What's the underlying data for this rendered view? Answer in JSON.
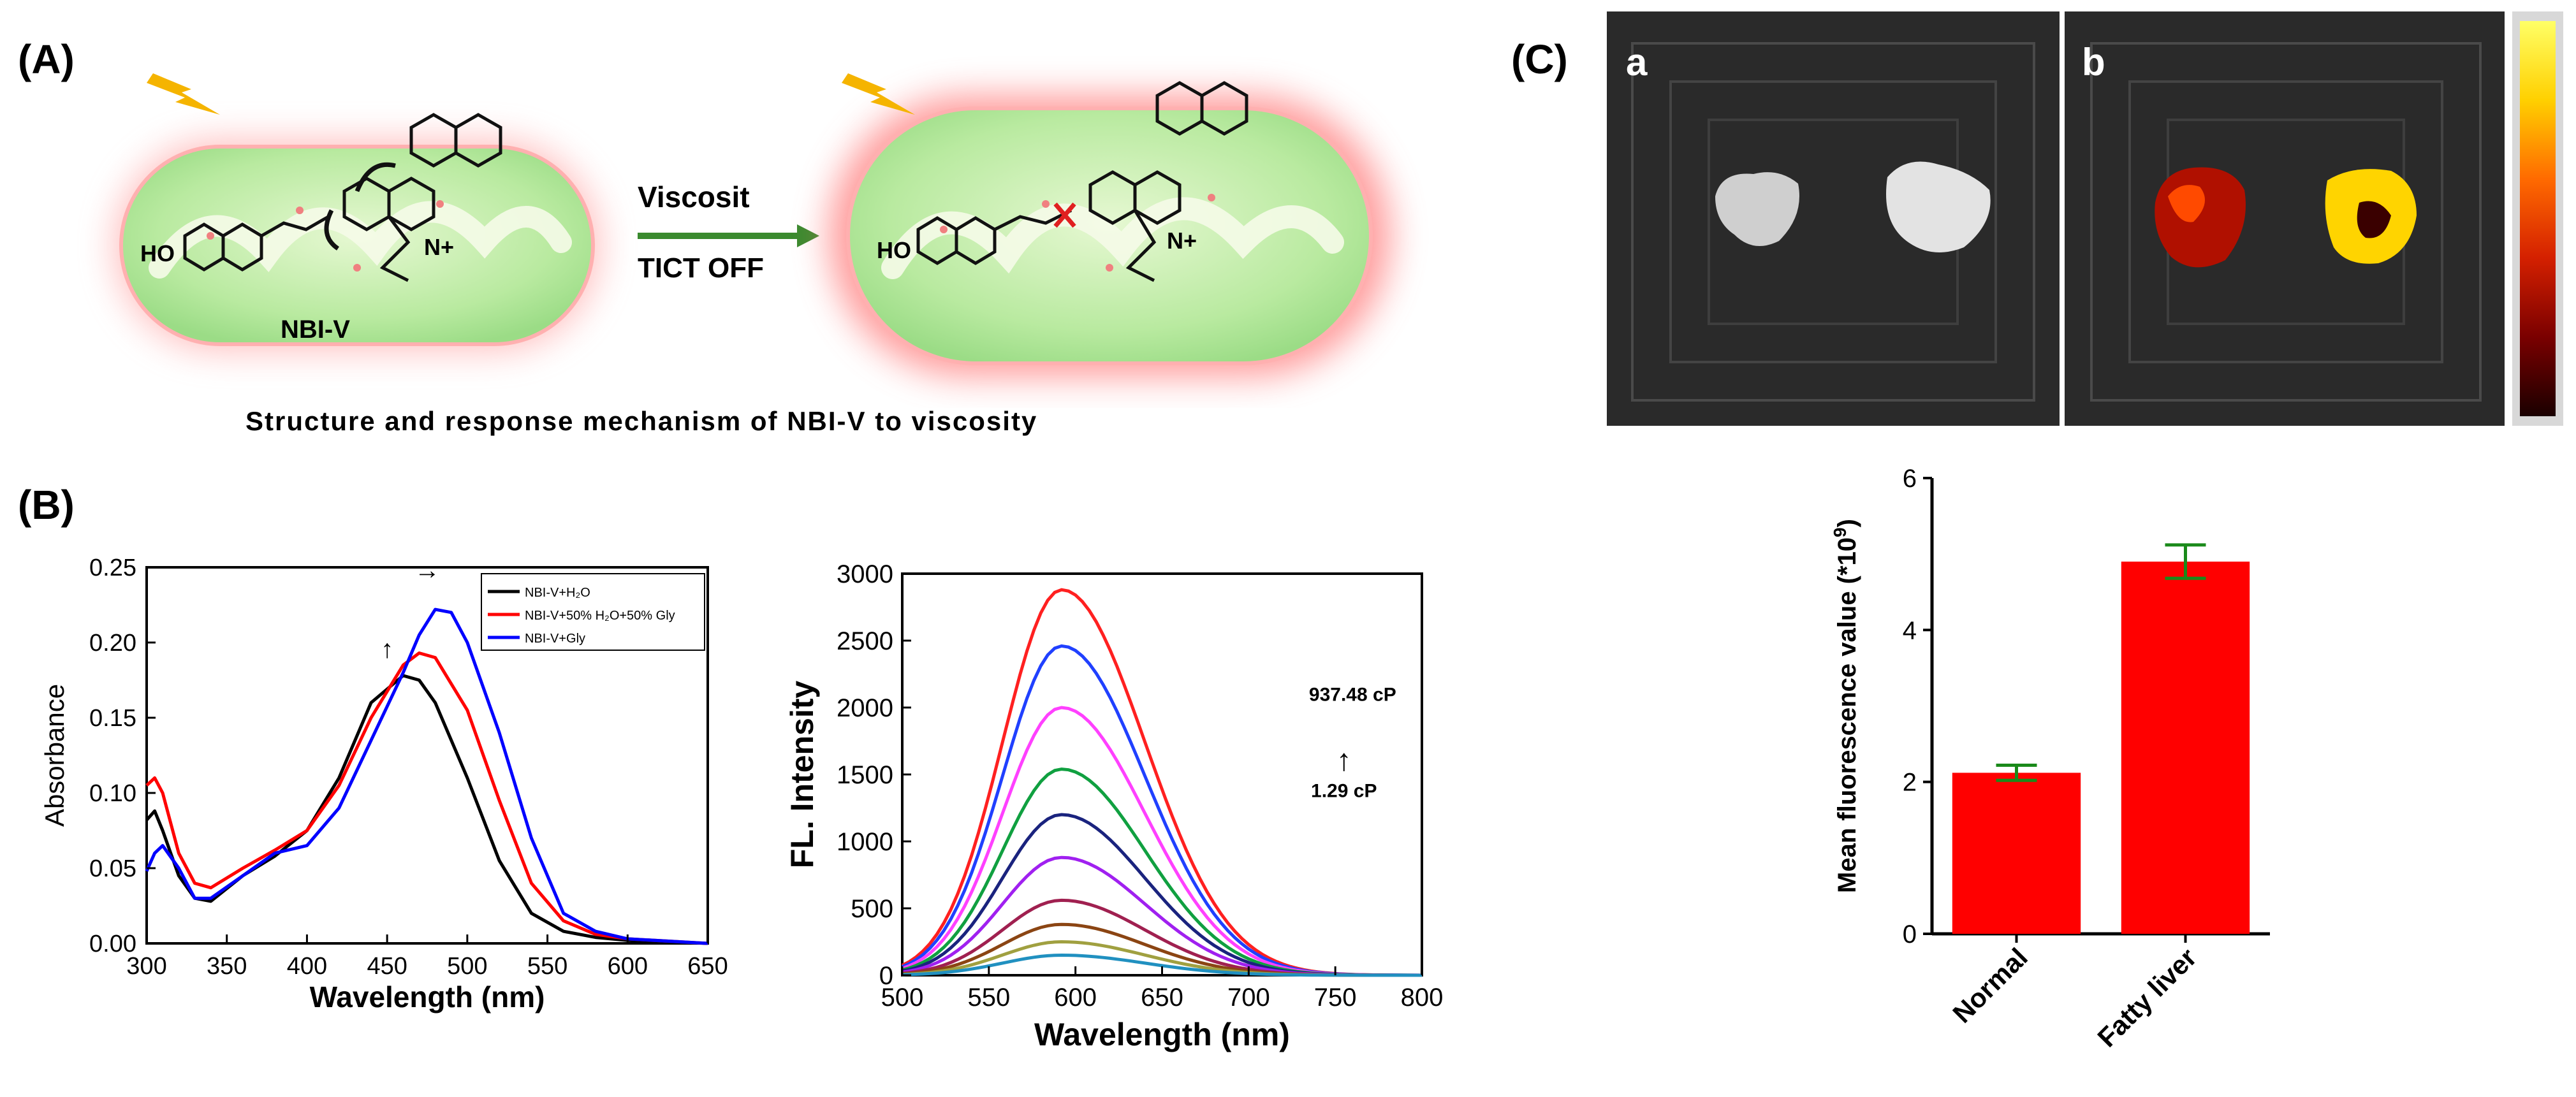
{
  "panels": {
    "a_label": "(A)",
    "b_label": "(B)",
    "c_label": "(C)"
  },
  "schemeA": {
    "probe_name": "NBI-V",
    "arrow_top": "Viscosit",
    "arrow_bottom": "TICT OFF",
    "ho_label": "HO",
    "n_plus_label": "N+",
    "caption": "Structure and response mechanism of NBI-V to viscosity",
    "colors": {
      "mito_fill": "#c7efb0",
      "mito_glow": "#ff8a8a",
      "lightning": "#f5b400",
      "arrow": "#3a8a2e",
      "rotation_x": "#e02020"
    }
  },
  "imagesC": {
    "sub_a": "a",
    "sub_b": "b",
    "colorbar": [
      "#ffff66",
      "#ffd000",
      "#ff6a00",
      "#d42000",
      "#7a0000",
      "#1a0000"
    ]
  },
  "chart_data": [
    {
      "type": "line",
      "title": "",
      "xlabel": "Wavelength (nm)",
      "ylabel": "Absorbance",
      "xlim": [
        300,
        650
      ],
      "ylim": [
        0,
        0.25
      ],
      "xticks": [
        "300",
        "350",
        "400",
        "450",
        "500",
        "550",
        "600",
        "650"
      ],
      "yticks": [
        "0.00",
        "0.05",
        "0.10",
        "0.15",
        "0.20",
        "0.25"
      ],
      "legend": [
        "NBI-V+H₂O",
        "NBI-V+50% H₂O+50% Gly",
        "NBI-V+Gly"
      ],
      "series": [
        {
          "name": "NBI-V+H₂O",
          "color": "#000000",
          "x": [
            300,
            305,
            310,
            320,
            330,
            340,
            360,
            380,
            400,
            420,
            440,
            460,
            470,
            480,
            500,
            520,
            540,
            560,
            580,
            600,
            650
          ],
          "y": [
            0.082,
            0.088,
            0.075,
            0.045,
            0.03,
            0.028,
            0.045,
            0.058,
            0.075,
            0.11,
            0.16,
            0.178,
            0.175,
            0.16,
            0.11,
            0.055,
            0.02,
            0.008,
            0.004,
            0.002,
            0.0
          ]
        },
        {
          "name": "NBI-V+50% H₂O+50% Gly",
          "color": "#ff0000",
          "x": [
            300,
            305,
            310,
            320,
            330,
            340,
            360,
            380,
            400,
            420,
            440,
            460,
            470,
            480,
            500,
            520,
            540,
            560,
            580,
            600,
            650
          ],
          "y": [
            0.105,
            0.11,
            0.1,
            0.06,
            0.04,
            0.037,
            0.05,
            0.062,
            0.075,
            0.105,
            0.15,
            0.185,
            0.193,
            0.19,
            0.155,
            0.095,
            0.04,
            0.015,
            0.006,
            0.003,
            0.0
          ]
        },
        {
          "name": "NBI-V+Gly",
          "color": "#0000ff",
          "x": [
            300,
            305,
            310,
            320,
            330,
            340,
            360,
            380,
            400,
            420,
            440,
            460,
            470,
            480,
            490,
            500,
            520,
            540,
            560,
            580,
            600,
            650
          ],
          "y": [
            0.048,
            0.06,
            0.065,
            0.05,
            0.03,
            0.03,
            0.045,
            0.06,
            0.065,
            0.09,
            0.135,
            0.18,
            0.205,
            0.222,
            0.22,
            0.2,
            0.14,
            0.07,
            0.02,
            0.008,
            0.003,
            0.0
          ]
        }
      ],
      "annotations": [
        "↑",
        "→"
      ]
    },
    {
      "type": "line",
      "title": "",
      "xlabel": "Wavelength (nm)",
      "ylabel": "FL. Intensity",
      "xlim": [
        500,
        800
      ],
      "ylim": [
        0,
        3000
      ],
      "xticks": [
        "500",
        "550",
        "600",
        "650",
        "700",
        "750",
        "800"
      ],
      "yticks": [
        "0",
        "500",
        "1000",
        "1500",
        "2000",
        "2500",
        "3000"
      ],
      "peak_nm": 592,
      "sigma_left": 34,
      "sigma_right": 48,
      "series": [
        {
          "name": "2880",
          "color": "#ff2020",
          "peak": 2880
        },
        {
          "name": "2460",
          "color": "#2040ff",
          "peak": 2460
        },
        {
          "name": "2000",
          "color": "#ff40ff",
          "peak": 2000
        },
        {
          "name": "1540",
          "color": "#10a040",
          "peak": 1540
        },
        {
          "name": "1200",
          "color": "#1a237e",
          "peak": 1200
        },
        {
          "name": "880",
          "color": "#a020f0",
          "peak": 880
        },
        {
          "name": "560",
          "color": "#a02050",
          "peak": 560
        },
        {
          "name": "380",
          "color": "#8b4513",
          "peak": 380
        },
        {
          "name": "250",
          "color": "#a0a040",
          "peak": 250
        },
        {
          "name": "150",
          "color": "#2090c0",
          "peak": 150
        }
      ],
      "annotation_high": "937.48 cP",
      "annotation_low": "1.29 cP",
      "annotation_arrow": "↑"
    },
    {
      "type": "bar",
      "title": "",
      "xlabel": "",
      "ylabel": "Mean fluorescence value (*10",
      "ylabel_sup": "9",
      "ylabel_tail": ")",
      "ylim": [
        0,
        6
      ],
      "yticks": [
        "0",
        "2",
        "4",
        "6"
      ],
      "categories": [
        "Normal",
        "Fatty liver"
      ],
      "values": [
        2.12,
        4.9
      ],
      "errors": [
        0.1,
        0.22
      ],
      "bar_color": "#ff0000",
      "error_color": "#1a8a1a"
    }
  ]
}
